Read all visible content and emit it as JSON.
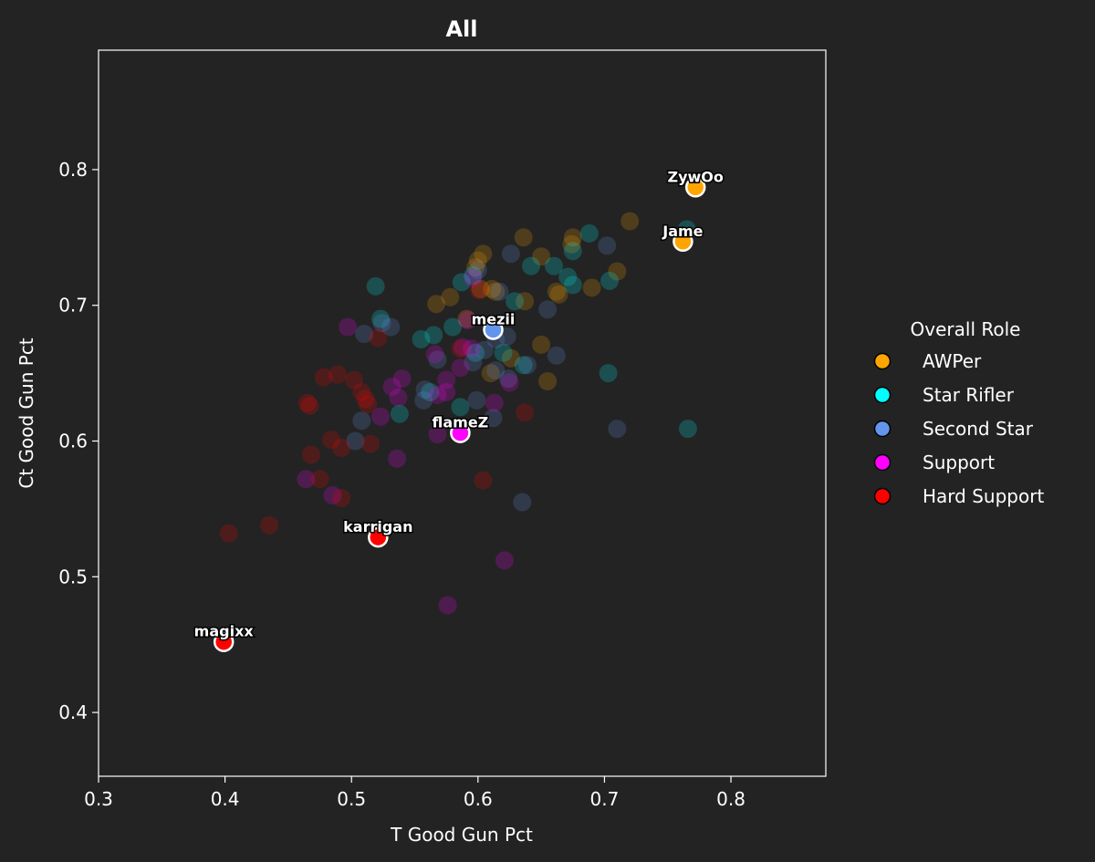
{
  "chart_data": {
    "type": "scatter",
    "title": "All",
    "xlabel": "T Good Gun Pct",
    "ylabel": "Ct Good Gun Pct",
    "xlim": [
      0.3,
      0.875
    ],
    "ylim": [
      0.353,
      0.888
    ],
    "xticks": [
      0.3,
      0.4,
      0.5,
      0.6,
      0.7,
      0.8
    ],
    "yticks": [
      0.4,
      0.5,
      0.6,
      0.7,
      0.8
    ],
    "xtick_labels": [
      "0.3",
      "0.4",
      "0.5",
      "0.6",
      "0.7",
      "0.8"
    ],
    "ytick_labels": [
      "0.4",
      "0.5",
      "0.6",
      "0.7",
      "0.8"
    ],
    "grid": false,
    "legend": {
      "title": "Overall Role",
      "placement": "right-outside",
      "entries": [
        {
          "label": "AWPer",
          "color": "#FFA500"
        },
        {
          "label": "Star Rifler",
          "color": "#00FFFF"
        },
        {
          "label": "Second Star",
          "color": "#6495ED"
        },
        {
          "label": "Support",
          "color": "#FF00FF"
        },
        {
          "label": "Hard Support",
          "color": "#FF0000"
        }
      ]
    },
    "colors": {
      "background": "#232323",
      "AWPer": "#FFA500",
      "Star Rifler": "#00FFFF",
      "Second Star": "#6495ED",
      "Support": "#FF00FF",
      "Hard Support": "#FF0000"
    },
    "highlighted": [
      {
        "name": "ZywOo",
        "role": "AWPer",
        "x": 0.772,
        "y": 0.787
      },
      {
        "name": "Jame",
        "role": "AWPer",
        "x": 0.762,
        "y": 0.747
      },
      {
        "name": "mezii",
        "role": "Second Star",
        "x": 0.612,
        "y": 0.682
      },
      {
        "name": "flameZ",
        "role": "Support",
        "x": 0.586,
        "y": 0.606
      },
      {
        "name": "karrigan",
        "role": "Hard Support",
        "x": 0.521,
        "y": 0.529
      },
      {
        "name": "magixx",
        "role": "Hard Support",
        "x": 0.399,
        "y": 0.452
      }
    ],
    "background_series": [
      {
        "role": "AWPer",
        "points": [
          [
            0.72,
            0.762
          ],
          [
            0.675,
            0.75
          ],
          [
            0.636,
            0.75
          ],
          [
            0.604,
            0.738
          ],
          [
            0.6,
            0.733
          ],
          [
            0.65,
            0.736
          ],
          [
            0.598,
            0.728
          ],
          [
            0.71,
            0.725
          ],
          [
            0.611,
            0.712
          ],
          [
            0.614,
            0.71
          ],
          [
            0.602,
            0.712
          ],
          [
            0.662,
            0.71
          ],
          [
            0.664,
            0.708
          ],
          [
            0.69,
            0.713
          ],
          [
            0.578,
            0.706
          ],
          [
            0.567,
            0.701
          ],
          [
            0.637,
            0.703
          ],
          [
            0.591,
            0.69
          ],
          [
            0.655,
            0.644
          ],
          [
            0.65,
            0.671
          ],
          [
            0.626,
            0.661
          ],
          [
            0.61,
            0.65
          ],
          [
            0.674,
            0.745
          ]
        ]
      },
      {
        "role": "Star Rifler",
        "points": [
          [
            0.688,
            0.753
          ],
          [
            0.765,
            0.756
          ],
          [
            0.675,
            0.74
          ],
          [
            0.642,
            0.729
          ],
          [
            0.66,
            0.729
          ],
          [
            0.671,
            0.721
          ],
          [
            0.675,
            0.715
          ],
          [
            0.704,
            0.718
          ],
          [
            0.596,
            0.722
          ],
          [
            0.587,
            0.717
          ],
          [
            0.519,
            0.714
          ],
          [
            0.629,
            0.703
          ],
          [
            0.523,
            0.69
          ],
          [
            0.555,
            0.675
          ],
          [
            0.565,
            0.678
          ],
          [
            0.58,
            0.684
          ],
          [
            0.62,
            0.665
          ],
          [
            0.598,
            0.665
          ],
          [
            0.636,
            0.656
          ],
          [
            0.703,
            0.65
          ],
          [
            0.586,
            0.625
          ],
          [
            0.538,
            0.62
          ],
          [
            0.766,
            0.609
          ],
          [
            0.562,
            0.636
          ]
        ]
      },
      {
        "role": "Second Star",
        "points": [
          [
            0.702,
            0.744
          ],
          [
            0.626,
            0.738
          ],
          [
            0.6,
            0.726
          ],
          [
            0.617,
            0.71
          ],
          [
            0.655,
            0.697
          ],
          [
            0.531,
            0.684
          ],
          [
            0.51,
            0.679
          ],
          [
            0.524,
            0.687
          ],
          [
            0.614,
            0.675
          ],
          [
            0.623,
            0.677
          ],
          [
            0.568,
            0.66
          ],
          [
            0.596,
            0.658
          ],
          [
            0.605,
            0.667
          ],
          [
            0.662,
            0.663
          ],
          [
            0.614,
            0.652
          ],
          [
            0.639,
            0.656
          ],
          [
            0.624,
            0.646
          ],
          [
            0.558,
            0.638
          ],
          [
            0.557,
            0.63
          ],
          [
            0.599,
            0.63
          ],
          [
            0.612,
            0.617
          ],
          [
            0.508,
            0.615
          ],
          [
            0.503,
            0.6
          ],
          [
            0.71,
            0.609
          ],
          [
            0.635,
            0.555
          ]
        ]
      },
      {
        "role": "Support",
        "points": [
          [
            0.596,
            0.72
          ],
          [
            0.592,
            0.689
          ],
          [
            0.497,
            0.684
          ],
          [
            0.566,
            0.664
          ],
          [
            0.588,
            0.669
          ],
          [
            0.586,
            0.654
          ],
          [
            0.575,
            0.645
          ],
          [
            0.54,
            0.646
          ],
          [
            0.532,
            0.64
          ],
          [
            0.537,
            0.632
          ],
          [
            0.568,
            0.634
          ],
          [
            0.575,
            0.636
          ],
          [
            0.613,
            0.628
          ],
          [
            0.625,
            0.643
          ],
          [
            0.523,
            0.618
          ],
          [
            0.568,
            0.605
          ],
          [
            0.536,
            0.587
          ],
          [
            0.485,
            0.56
          ],
          [
            0.464,
            0.572
          ],
          [
            0.621,
            0.512
          ],
          [
            0.576,
            0.479
          ],
          [
            0.595,
            0.668
          ]
        ]
      },
      {
        "role": "Hard Support",
        "points": [
          [
            0.601,
            0.711
          ],
          [
            0.521,
            0.676
          ],
          [
            0.586,
            0.668
          ],
          [
            0.478,
            0.647
          ],
          [
            0.489,
            0.649
          ],
          [
            0.502,
            0.645
          ],
          [
            0.508,
            0.636
          ],
          [
            0.511,
            0.631
          ],
          [
            0.513,
            0.627
          ],
          [
            0.465,
            0.628
          ],
          [
            0.467,
            0.626
          ],
          [
            0.484,
            0.601
          ],
          [
            0.492,
            0.595
          ],
          [
            0.515,
            0.598
          ],
          [
            0.468,
            0.59
          ],
          [
            0.475,
            0.572
          ],
          [
            0.492,
            0.558
          ],
          [
            0.637,
            0.621
          ],
          [
            0.604,
            0.571
          ],
          [
            0.435,
            0.538
          ],
          [
            0.403,
            0.532
          ]
        ]
      }
    ]
  }
}
